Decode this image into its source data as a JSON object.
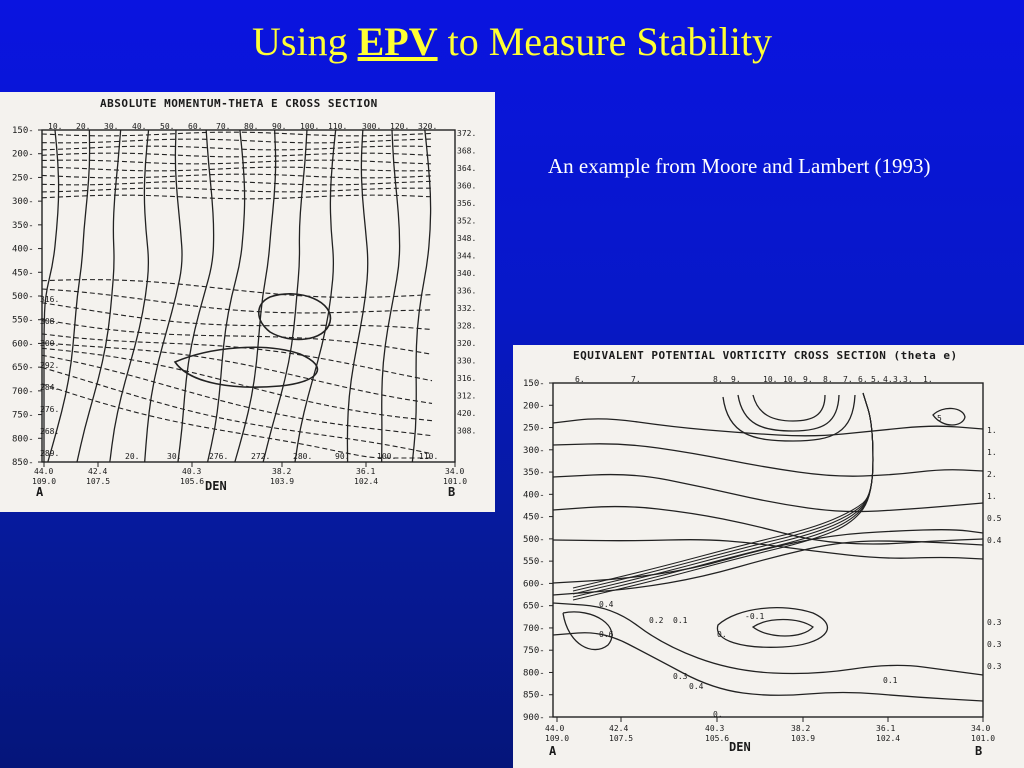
{
  "slide": {
    "title_prefix": "Using ",
    "title_key": "EPV",
    "title_suffix": " to Measure Stability",
    "caption": "An example from Moore and Lambert (1993)"
  },
  "figure_a": {
    "title": "ABSOLUTE MOMENTUM-THETA E CROSS SECTION",
    "y_ticks": [
      "150",
      "200",
      "250",
      "300",
      "350",
      "400",
      "450",
      "500",
      "550",
      "600",
      "650",
      "700",
      "750",
      "800",
      "850"
    ],
    "top_labels": [
      "10.",
      "20.",
      "30.",
      "40.",
      "50.",
      "60.",
      "70.",
      "80.",
      "90.",
      "100.",
      "110.",
      "300.",
      "120.",
      "320."
    ],
    "right_labels": [
      "372.",
      "368.",
      "364.",
      "360.",
      "356.",
      "352.",
      "348.",
      "344.",
      "340.",
      "336.",
      "332.",
      "328.",
      "320.",
      "330.",
      "316.",
      "312.",
      "420.",
      "308."
    ],
    "left_labels": [
      "316.",
      "308.",
      "300.",
      "292.",
      "284.",
      "276.",
      "268.",
      "289."
    ],
    "bottom_labels": [
      "20.",
      "30.",
      "276.",
      "272.",
      "280.",
      "90.",
      "100.",
      "110."
    ],
    "stations": [
      {
        "top": "44.0",
        "bot": "109.0"
      },
      {
        "top": "42.4",
        "bot": "107.5"
      },
      {
        "top": "40.3",
        "bot": "105.6"
      },
      {
        "top": "38.2",
        "bot": "103.9"
      },
      {
        "top": "36.1",
        "bot": "102.4"
      },
      {
        "top": "34.0",
        "bot": "101.0"
      }
    ],
    "end_a": "A",
    "end_b": "B",
    "den": "DEN"
  },
  "figure_b": {
    "title": "EQUIVALENT POTENTIAL VORTICITY CROSS SECTION (theta e)",
    "y_ticks": [
      "150",
      "200",
      "250",
      "300",
      "350",
      "400",
      "450",
      "500",
      "550",
      "600",
      "650",
      "700",
      "750",
      "800",
      "850",
      "900"
    ],
    "top_labels": [
      "6.",
      "7.",
      "8.",
      "9.",
      "10.",
      "10.",
      "9.",
      "8.",
      "7.",
      "6.",
      "5.",
      "4.",
      "3.",
      "3.",
      "1."
    ],
    "right_labels": [
      "1.",
      "1.",
      "2.",
      "1.",
      "0.5",
      "0.4",
      "0.3",
      "0.3",
      "0.3"
    ],
    "contour_labels": [
      "0.4",
      "0.2",
      "0.1",
      "-0.1",
      "0.",
      "0.6",
      "0.3",
      "0.4",
      "0.1",
      "0.",
      "5"
    ],
    "stations": [
      {
        "top": "44.0",
        "bot": "109.0"
      },
      {
        "top": "42.4",
        "bot": "107.5"
      },
      {
        "top": "40.3",
        "bot": "105.6"
      },
      {
        "top": "38.2",
        "bot": "103.9"
      },
      {
        "top": "36.1",
        "bot": "102.4"
      },
      {
        "top": "34.0",
        "bot": "101.0"
      }
    ],
    "end_a": "A",
    "end_b": "B",
    "den": "DEN"
  }
}
